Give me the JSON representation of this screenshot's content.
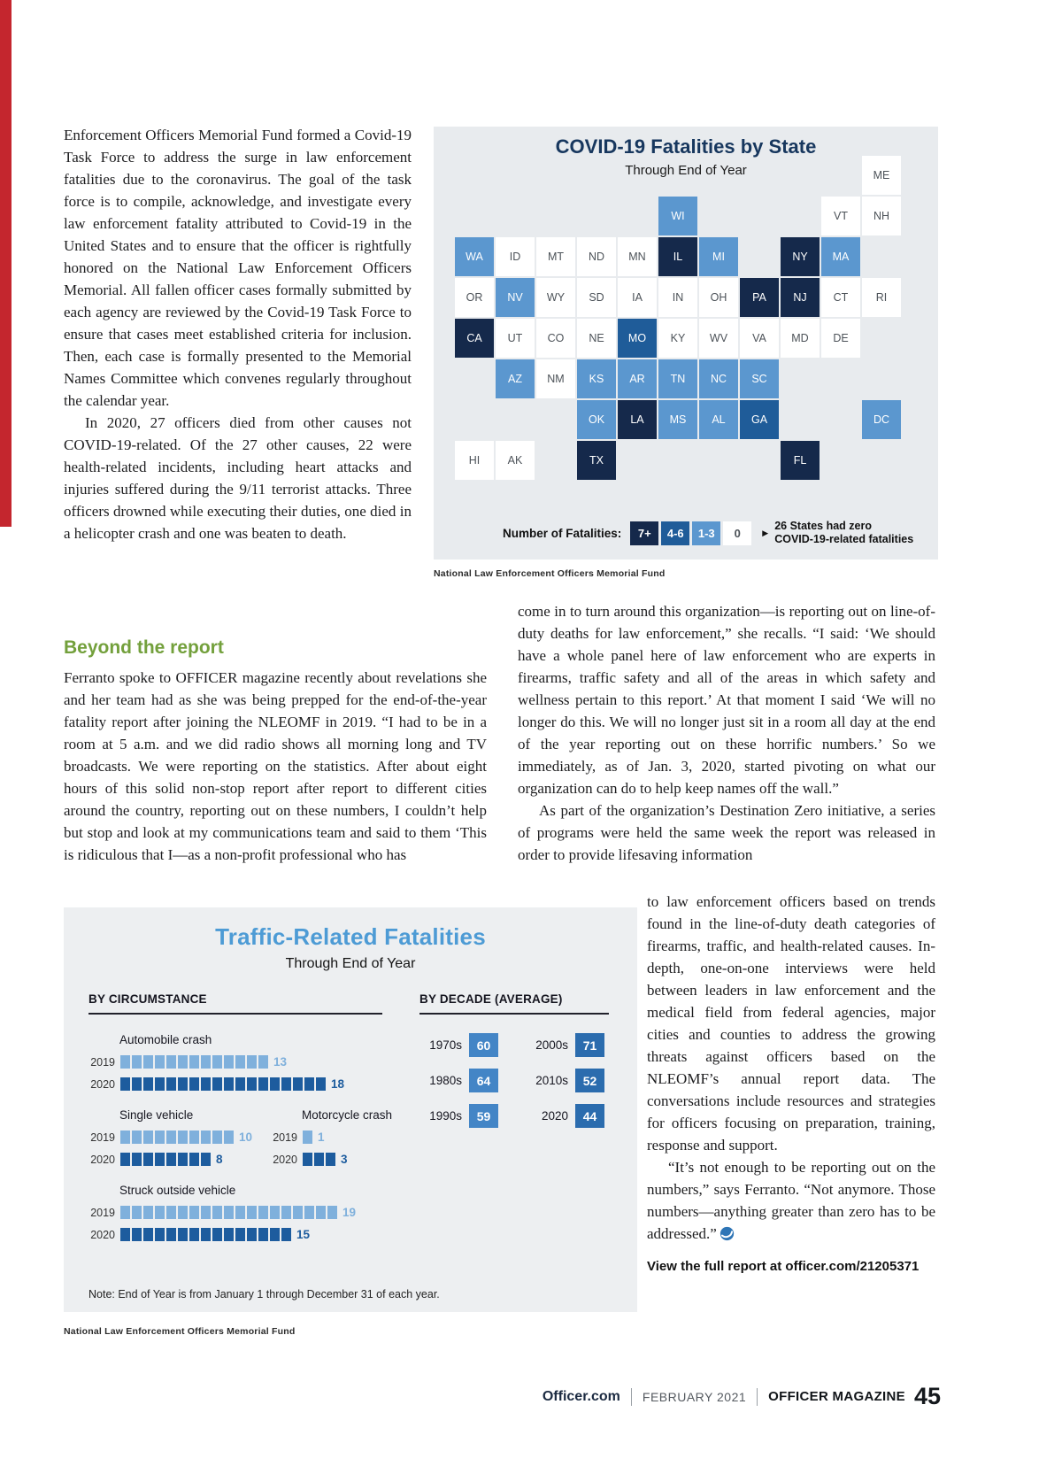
{
  "page": {
    "accent_red": "#c4262e",
    "footer": {
      "site": "Officer.com",
      "date": "FEBRUARY 2021",
      "magazine": "OFFICER MAGAZINE",
      "page_number": "45"
    }
  },
  "article": {
    "col1_para1": "Enforcement Officers Memorial Fund formed a Covid-19 Task Force to address the surge in law enforcement fatalities due to the coronavirus. The goal of the task force is to compile, acknowledge, and investigate every law enforcement fatality attributed to Covid-19 in the United States and to ensure that the officer is rightfully honored on the National Law Enforcement Officers Memorial. All fallen officer cases formally submitted by each agency are reviewed by the Covid-19 Task Force to ensure that cases meet established criteria for inclusion. Then, each case is formally presented to the Memorial Names Committee which convenes regularly throughout the calendar year.",
    "col1_para2": "In 2020, 27 officers died from other causes not COVID-19-related. Of the 27 other causes, 22 were health-related incidents, including heart attacks and injuries suffered during the 9/11 terrorist attacks. Three officers drowned while executing their duties, one died in a helicopter crash and one was beaten to death.",
    "section_heading": "Beyond the report",
    "col1_para3": "Ferranto spoke to OFFICER magazine recently about revelations she and her team had as she was being prepped for the end-of-the-year fatality report after joining the NLEOMF in 2019. “I had to be in a room at 5 a.m. and we did radio shows all morning long and TV broadcasts. We were reporting on the statistics. After about eight hours of this solid non-stop report after report to different cities around the country, reporting out on these numbers, I couldn’t help but stop and look at my communications team and said to them ‘This is ridiculous that I—as a non-profit professional who has",
    "col2_para1": "come in to turn around this organization—is reporting out on line-of-duty deaths for law enforcement,” she recalls. “I said: ‘We should have a whole panel here of law enforcement who are experts in firearms, traffic safety and all of the areas in which safety and wellness pertain to this report.’ At that moment I said ‘We will no longer do this. We will no longer just sit in a room all day at the end of the year reporting out on these horrific numbers.’ So we immediately, as of Jan. 3, 2020, started pivoting on what our organization can do to help keep names off the wall.”",
    "col2_para2": "As part of the organization’s Destination Zero initiative, a series of programs were held the same week the report was released in order to provide lifesaving information",
    "col3_para1": "to law enforcement officers based on trends found in the line-of-duty death categories of firearms, traffic, and health-related causes. In-depth, one-on-one interviews were held between leaders in law enforcement and the medical field from federal agencies, major cities and counties to address the growing threats against officers based on the NLEOMF’s annual report data. The conversations include resources and strategies for officers focusing on preparation, training, response and support.",
    "col3_para2": "“It’s not enough to be reporting out on the numbers,” says Ferranto. “Not anymore. Those numbers—anything greater than zero has to be addressed.”",
    "report_link": "View the full report at officer.com/21205371"
  },
  "covid_map": {
    "title": "COVID-19 Fatalities by State",
    "subtitle": "Through End of Year",
    "legend_label": "Number of Fatalities:",
    "legend_arrow_icon": "▶",
    "legend_note_line1": "26 States had zero",
    "legend_note_line2": "COVID-19-related fatalities",
    "source": "National Law Enforcement Officers Memorial Fund",
    "legend_items": [
      {
        "label": "7+",
        "color": "#15294b",
        "text": "#ffffff"
      },
      {
        "label": "4-6",
        "color": "#1f5c99",
        "text": "#ffffff"
      },
      {
        "label": "1-3",
        "color": "#5b97cf",
        "text": "#ffffff"
      },
      {
        "label": "0",
        "color": "#ffffff",
        "text": "#4c5258"
      }
    ],
    "tiles": [
      {
        "state": "ME",
        "row": 0,
        "col": 10,
        "tier": "0"
      },
      {
        "state": "WI",
        "row": 1,
        "col": 5,
        "tier": "1-3"
      },
      {
        "state": "VT",
        "row": 1,
        "col": 9,
        "tier": "0"
      },
      {
        "state": "NH",
        "row": 1,
        "col": 10,
        "tier": "0"
      },
      {
        "state": "WA",
        "row": 2,
        "col": 0,
        "tier": "1-3"
      },
      {
        "state": "ID",
        "row": 2,
        "col": 1,
        "tier": "0"
      },
      {
        "state": "MT",
        "row": 2,
        "col": 2,
        "tier": "0"
      },
      {
        "state": "ND",
        "row": 2,
        "col": 3,
        "tier": "0"
      },
      {
        "state": "MN",
        "row": 2,
        "col": 4,
        "tier": "0"
      },
      {
        "state": "IL",
        "row": 2,
        "col": 5,
        "tier": "7+"
      },
      {
        "state": "MI",
        "row": 2,
        "col": 6,
        "tier": "1-3"
      },
      {
        "state": "NY",
        "row": 2,
        "col": 8,
        "tier": "7+"
      },
      {
        "state": "MA",
        "row": 2,
        "col": 9,
        "tier": "1-3"
      },
      {
        "state": "OR",
        "row": 3,
        "col": 0,
        "tier": "0"
      },
      {
        "state": "NV",
        "row": 3,
        "col": 1,
        "tier": "1-3"
      },
      {
        "state": "WY",
        "row": 3,
        "col": 2,
        "tier": "0"
      },
      {
        "state": "SD",
        "row": 3,
        "col": 3,
        "tier": "0"
      },
      {
        "state": "IA",
        "row": 3,
        "col": 4,
        "tier": "0"
      },
      {
        "state": "IN",
        "row": 3,
        "col": 5,
        "tier": "0"
      },
      {
        "state": "OH",
        "row": 3,
        "col": 6,
        "tier": "0"
      },
      {
        "state": "PA",
        "row": 3,
        "col": 7,
        "tier": "7+"
      },
      {
        "state": "NJ",
        "row": 3,
        "col": 8,
        "tier": "7+"
      },
      {
        "state": "CT",
        "row": 3,
        "col": 9,
        "tier": "0"
      },
      {
        "state": "RI",
        "row": 3,
        "col": 10,
        "tier": "0"
      },
      {
        "state": "CA",
        "row": 4,
        "col": 0,
        "tier": "7+"
      },
      {
        "state": "UT",
        "row": 4,
        "col": 1,
        "tier": "0"
      },
      {
        "state": "CO",
        "row": 4,
        "col": 2,
        "tier": "0"
      },
      {
        "state": "NE",
        "row": 4,
        "col": 3,
        "tier": "0"
      },
      {
        "state": "MO",
        "row": 4,
        "col": 4,
        "tier": "4-6"
      },
      {
        "state": "KY",
        "row": 4,
        "col": 5,
        "tier": "0"
      },
      {
        "state": "WV",
        "row": 4,
        "col": 6,
        "tier": "0"
      },
      {
        "state": "VA",
        "row": 4,
        "col": 7,
        "tier": "0"
      },
      {
        "state": "MD",
        "row": 4,
        "col": 8,
        "tier": "0"
      },
      {
        "state": "DE",
        "row": 4,
        "col": 9,
        "tier": "0"
      },
      {
        "state": "AZ",
        "row": 5,
        "col": 1,
        "tier": "1-3"
      },
      {
        "state": "NM",
        "row": 5,
        "col": 2,
        "tier": "0"
      },
      {
        "state": "KS",
        "row": 5,
        "col": 3,
        "tier": "1-3"
      },
      {
        "state": "AR",
        "row": 5,
        "col": 4,
        "tier": "1-3"
      },
      {
        "state": "TN",
        "row": 5,
        "col": 5,
        "tier": "1-3"
      },
      {
        "state": "NC",
        "row": 5,
        "col": 6,
        "tier": "1-3"
      },
      {
        "state": "SC",
        "row": 5,
        "col": 7,
        "tier": "1-3"
      },
      {
        "state": "OK",
        "row": 6,
        "col": 3,
        "tier": "1-3"
      },
      {
        "state": "LA",
        "row": 6,
        "col": 4,
        "tier": "7+"
      },
      {
        "state": "MS",
        "row": 6,
        "col": 5,
        "tier": "1-3"
      },
      {
        "state": "AL",
        "row": 6,
        "col": 6,
        "tier": "1-3"
      },
      {
        "state": "GA",
        "row": 6,
        "col": 7,
        "tier": "4-6"
      },
      {
        "state": "DC",
        "row": 6,
        "col": 10,
        "tier": "1-3"
      },
      {
        "state": "HI",
        "row": 7,
        "col": 0,
        "tier": "0"
      },
      {
        "state": "AK",
        "row": 7,
        "col": 1,
        "tier": "0"
      },
      {
        "state": "TX",
        "row": 7,
        "col": 3,
        "tier": "7+"
      },
      {
        "state": "FL",
        "row": 7,
        "col": 8,
        "tier": "7+"
      }
    ]
  },
  "traffic_chart": {
    "title": "Traffic-Related Fatalities",
    "subtitle": "Through End of Year",
    "left_header": "BY CIRCUMSTANCE",
    "right_header": "BY DECADE (AVERAGE)",
    "note": "Note: End of Year is from January 1 through December 31 of each year.",
    "source": "National Law Enforcement Officers Memorial Fund",
    "year_colors": {
      "2019": "#7fb0dc",
      "2020": "#1d5c9e"
    },
    "groups": [
      {
        "label": "Automobile crash",
        "rows": [
          {
            "year": "2019",
            "value": 13
          },
          {
            "year": "2020",
            "value": 18
          }
        ]
      },
      {
        "label": "Single vehicle",
        "rows": [
          {
            "year": "2019",
            "value": 10
          },
          {
            "year": "2020",
            "value": 8
          }
        ]
      },
      {
        "label": "Motorcycle crash",
        "rows": [
          {
            "year": "2019",
            "value": 1
          },
          {
            "year": "2020",
            "value": 3
          }
        ]
      },
      {
        "label": "Struck outside vehicle",
        "rows": [
          {
            "year": "2019",
            "value": 19
          },
          {
            "year": "2020",
            "value": 15
          }
        ]
      }
    ],
    "decades": [
      {
        "label": "1970s",
        "value": 60,
        "color": "#4385c6"
      },
      {
        "label": "1980s",
        "value": 64,
        "color": "#4385c6"
      },
      {
        "label": "1990s",
        "value": 59,
        "color": "#4385c6"
      },
      {
        "label": "2000s",
        "value": 71,
        "color": "#2b6cae"
      },
      {
        "label": "2010s",
        "value": 52,
        "color": "#2b6cae"
      },
      {
        "label": "2020",
        "value": 44,
        "color": "#2b6cae"
      }
    ]
  },
  "chart_data": [
    {
      "type": "heatmap",
      "title": "COVID-19 Fatalities by State",
      "subtitle": "Through End of Year",
      "legend_bins": [
        "7+",
        "4-6",
        "1-3",
        "0"
      ],
      "annotation": "26 States had zero COVID-19-related fatalities",
      "bins": {
        "7+": [
          "CA",
          "IL",
          "NY",
          "PA",
          "NJ",
          "LA",
          "TX",
          "FL"
        ],
        "4-6": [
          "MO",
          "GA"
        ],
        "1-3": [
          "WA",
          "NV",
          "AZ",
          "WI",
          "MI",
          "MA",
          "KS",
          "AR",
          "TN",
          "NC",
          "SC",
          "OK",
          "MS",
          "AL",
          "DC"
        ],
        "0": [
          "ME",
          "VT",
          "NH",
          "ID",
          "MT",
          "ND",
          "MN",
          "OR",
          "WY",
          "SD",
          "IA",
          "IN",
          "OH",
          "CT",
          "RI",
          "UT",
          "CO",
          "NE",
          "KY",
          "WV",
          "VA",
          "MD",
          "DE",
          "NM",
          "HI",
          "AK"
        ]
      }
    },
    {
      "type": "bar",
      "title": "Traffic-Related Fatalities",
      "subtitle": "Through End of Year",
      "by_circumstance": {
        "categories": [
          "Automobile crash",
          "Single vehicle",
          "Motorcycle crash",
          "Struck outside vehicle"
        ],
        "series": [
          {
            "name": "2019",
            "values": [
              13,
              10,
              1,
              19
            ]
          },
          {
            "name": "2020",
            "values": [
              18,
              8,
              3,
              15
            ]
          }
        ]
      },
      "by_decade_average": {
        "categories": [
          "1970s",
          "1980s",
          "1990s",
          "2000s",
          "2010s",
          "2020"
        ],
        "values": [
          60,
          64,
          59,
          71,
          52,
          44
        ]
      },
      "note": "Note: End of Year is from January 1 through December 31 of each year."
    }
  ]
}
